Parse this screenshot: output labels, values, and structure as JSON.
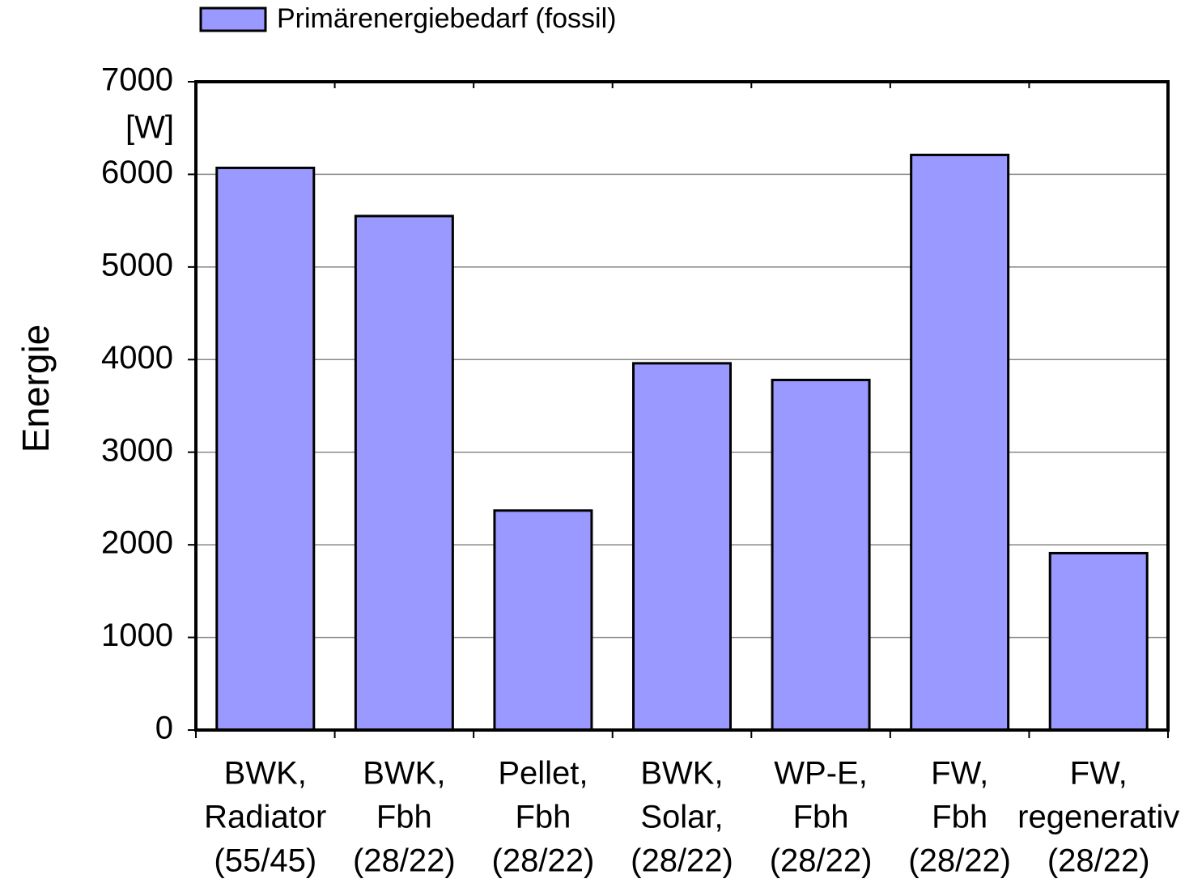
{
  "chart_data": {
    "type": "bar",
    "y_label": "Energie",
    "y_unit": "[W]",
    "categories": [
      [
        "BWK,",
        "Radiator",
        "(55/45)"
      ],
      [
        "BWK,",
        "Fbh",
        "(28/22)"
      ],
      [
        "Pellet,",
        "Fbh",
        "(28/22)"
      ],
      [
        "BWK,",
        "Solar,",
        "(28/22)"
      ],
      [
        "WP-E,",
        "Fbh",
        "(28/22)"
      ],
      [
        "FW,",
        "Fbh",
        "(28/22)"
      ],
      [
        "FW,",
        "regenerativ",
        "(28/22)"
      ]
    ],
    "series": [
      {
        "name": "Primärenergiebedarf (fossil)",
        "color": "#9999ff",
        "values": [
          6070,
          5550,
          2370,
          3960,
          3780,
          6210,
          1910
        ]
      }
    ],
    "ylim": [
      0,
      7000
    ],
    "yticks": [
      0,
      1000,
      2000,
      3000,
      4000,
      5000,
      6000,
      7000
    ],
    "grid": true,
    "legend": "top"
  }
}
